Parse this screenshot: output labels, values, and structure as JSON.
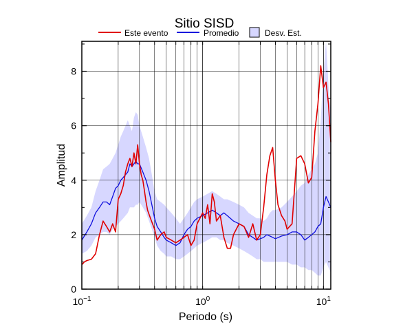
{
  "chart_data": {
    "type": "line",
    "title": "Sitio SISD",
    "xlabel": "Periodo (s)",
    "ylabel": "Amplitud",
    "x_scale": "log",
    "xlim": [
      0.1,
      11.5
    ],
    "ylim": [
      0,
      9.1
    ],
    "grid": true,
    "legend_position": "top",
    "x_ticks": [
      {
        "base": "10",
        "exp": "−1",
        "value": 0.1
      },
      {
        "base": "10",
        "exp": "0",
        "value": 1
      },
      {
        "base": "10",
        "exp": "1",
        "value": 10
      }
    ],
    "y_ticks": [
      0,
      2,
      4,
      6,
      8
    ],
    "series": [
      {
        "name": "Este evento",
        "color": "#e00000",
        "x": [
          0.1,
          0.105,
          0.11,
          0.12,
          0.13,
          0.14,
          0.15,
          0.16,
          0.17,
          0.18,
          0.19,
          0.2,
          0.21,
          0.22,
          0.23,
          0.24,
          0.25,
          0.26,
          0.27,
          0.28,
          0.29,
          0.3,
          0.31,
          0.32,
          0.33,
          0.34,
          0.35,
          0.37,
          0.4,
          0.42,
          0.45,
          0.48,
          0.5,
          0.55,
          0.6,
          0.65,
          0.7,
          0.75,
          0.8,
          0.85,
          0.9,
          1.0,
          1.05,
          1.1,
          1.15,
          1.2,
          1.25,
          1.3,
          1.4,
          1.5,
          1.6,
          1.7,
          1.8,
          2.0,
          2.2,
          2.4,
          2.6,
          2.8,
          3.0,
          3.2,
          3.4,
          3.6,
          3.8,
          4.0,
          4.2,
          4.5,
          4.8,
          5.0,
          5.5,
          6.0,
          6.5,
          7.0,
          7.5,
          8.0,
          8.5,
          9.0,
          9.5,
          10.0,
          10.5,
          11.0,
          11.5
        ],
        "values": [
          0.9,
          1.0,
          1.05,
          1.1,
          1.3,
          2.0,
          2.5,
          2.3,
          2.1,
          2.4,
          2.1,
          3.3,
          3.5,
          3.8,
          4.3,
          4.6,
          4.8,
          4.5,
          5.0,
          4.6,
          5.3,
          4.6,
          4.2,
          4.0,
          3.6,
          3.2,
          2.9,
          2.6,
          2.2,
          1.8,
          2.0,
          2.1,
          1.9,
          1.8,
          1.7,
          1.8,
          1.9,
          2.0,
          1.6,
          1.8,
          2.4,
          2.8,
          2.6,
          3.1,
          2.4,
          3.5,
          3.2,
          2.5,
          2.7,
          1.9,
          1.5,
          1.5,
          2.0,
          2.4,
          2.3,
          1.9,
          2.4,
          1.8,
          2.0,
          3.0,
          4.2,
          4.9,
          5.2,
          4.0,
          3.1,
          2.7,
          2.5,
          2.2,
          2.4,
          4.8,
          4.9,
          4.6,
          3.9,
          4.1,
          5.8,
          6.8,
          8.2,
          7.4,
          7.6,
          6.8,
          5.4
        ]
      },
      {
        "name": "Promedio",
        "color": "#1010dd",
        "x": [
          0.1,
          0.11,
          0.12,
          0.13,
          0.14,
          0.15,
          0.16,
          0.17,
          0.18,
          0.19,
          0.2,
          0.21,
          0.22,
          0.23,
          0.24,
          0.25,
          0.26,
          0.27,
          0.28,
          0.29,
          0.3,
          0.32,
          0.34,
          0.36,
          0.38,
          0.4,
          0.42,
          0.45,
          0.48,
          0.5,
          0.55,
          0.6,
          0.65,
          0.7,
          0.75,
          0.8,
          0.85,
          0.9,
          1.0,
          1.1,
          1.2,
          1.3,
          1.4,
          1.5,
          1.6,
          1.8,
          2.0,
          2.2,
          2.4,
          2.6,
          2.8,
          3.0,
          3.2,
          3.4,
          3.6,
          3.8,
          4.0,
          4.5,
          5.0,
          5.5,
          6.0,
          6.5,
          7.0,
          7.5,
          8.0,
          8.5,
          9.0,
          9.5,
          10.0,
          10.5,
          11.0,
          11.5
        ],
        "values": [
          1.8,
          2.1,
          2.4,
          2.8,
          3.0,
          3.2,
          3.2,
          3.1,
          3.4,
          3.7,
          3.8,
          4.0,
          4.1,
          4.2,
          4.3,
          4.6,
          4.5,
          4.6,
          4.7,
          4.6,
          4.6,
          4.3,
          4.0,
          3.6,
          3.1,
          2.6,
          2.3,
          2.1,
          1.9,
          1.8,
          1.7,
          1.6,
          1.7,
          2.0,
          2.2,
          2.3,
          2.5,
          2.6,
          2.7,
          2.8,
          2.9,
          2.8,
          2.7,
          2.8,
          2.7,
          2.5,
          2.4,
          2.3,
          2.0,
          1.9,
          1.8,
          1.85,
          1.9,
          2.0,
          1.95,
          1.9,
          1.85,
          1.95,
          2.0,
          2.1,
          2.1,
          2.0,
          1.8,
          1.9,
          2.0,
          2.1,
          2.3,
          2.4,
          3.0,
          3.4,
          3.2,
          3.0
        ]
      },
      {
        "name": "Desv. Est.",
        "color": "#d7d7ff",
        "x": [
          0.1,
          0.11,
          0.12,
          0.13,
          0.14,
          0.15,
          0.16,
          0.17,
          0.18,
          0.19,
          0.2,
          0.21,
          0.22,
          0.23,
          0.24,
          0.25,
          0.26,
          0.27,
          0.28,
          0.29,
          0.3,
          0.32,
          0.34,
          0.36,
          0.38,
          0.4,
          0.42,
          0.45,
          0.48,
          0.5,
          0.55,
          0.6,
          0.65,
          0.7,
          0.75,
          0.8,
          0.85,
          0.9,
          1.0,
          1.1,
          1.2,
          1.3,
          1.4,
          1.5,
          1.6,
          1.8,
          2.0,
          2.2,
          2.4,
          2.6,
          2.8,
          3.0,
          3.2,
          3.4,
          3.6,
          3.8,
          4.0,
          4.5,
          5.0,
          5.5,
          6.0,
          6.5,
          7.0,
          7.5,
          8.0,
          8.5,
          9.0,
          9.5,
          10.0,
          10.5,
          11.0,
          11.5
        ],
        "upper": [
          2.4,
          2.7,
          3.0,
          3.6,
          4.0,
          4.4,
          4.5,
          4.6,
          4.8,
          5.0,
          5.3,
          5.6,
          5.8,
          6.0,
          6.2,
          6.0,
          5.8,
          6.3,
          6.5,
          6.4,
          6.0,
          5.6,
          5.2,
          4.8,
          4.2,
          3.6,
          3.3,
          3.2,
          3.1,
          3.0,
          2.8,
          2.6,
          2.4,
          2.6,
          2.8,
          3.0,
          3.2,
          3.3,
          3.4,
          3.5,
          3.6,
          3.5,
          3.4,
          3.3,
          3.3,
          3.2,
          3.1,
          3.0,
          2.8,
          2.7,
          2.6,
          2.6,
          2.5,
          2.6,
          2.8,
          2.9,
          2.9,
          3.0,
          3.2,
          3.4,
          3.6,
          3.8,
          3.9,
          4.2,
          4.4,
          4.6,
          5.0,
          6.2,
          8.0,
          9.1,
          7.5,
          6.5
        ],
        "lower": [
          1.3,
          1.4,
          1.6,
          1.9,
          2.0,
          2.1,
          2.1,
          2.0,
          2.2,
          2.3,
          2.4,
          2.5,
          2.6,
          2.7,
          2.8,
          3.0,
          3.0,
          3.0,
          3.1,
          3.1,
          3.2,
          3.0,
          2.8,
          2.5,
          2.2,
          1.9,
          1.6,
          1.4,
          1.3,
          1.2,
          1.2,
          1.1,
          1.1,
          1.2,
          1.3,
          1.4,
          1.5,
          1.6,
          1.7,
          1.8,
          1.9,
          1.9,
          1.8,
          1.8,
          1.7,
          1.6,
          1.5,
          1.4,
          1.3,
          1.2,
          1.1,
          1.1,
          1.0,
          1.0,
          1.0,
          1.0,
          1.0,
          1.0,
          1.0,
          0.9,
          0.9,
          0.8,
          0.8,
          0.7,
          0.7,
          0.6,
          0.5,
          0.5,
          0.8,
          1.0,
          0.8,
          0.6
        ]
      }
    ]
  }
}
